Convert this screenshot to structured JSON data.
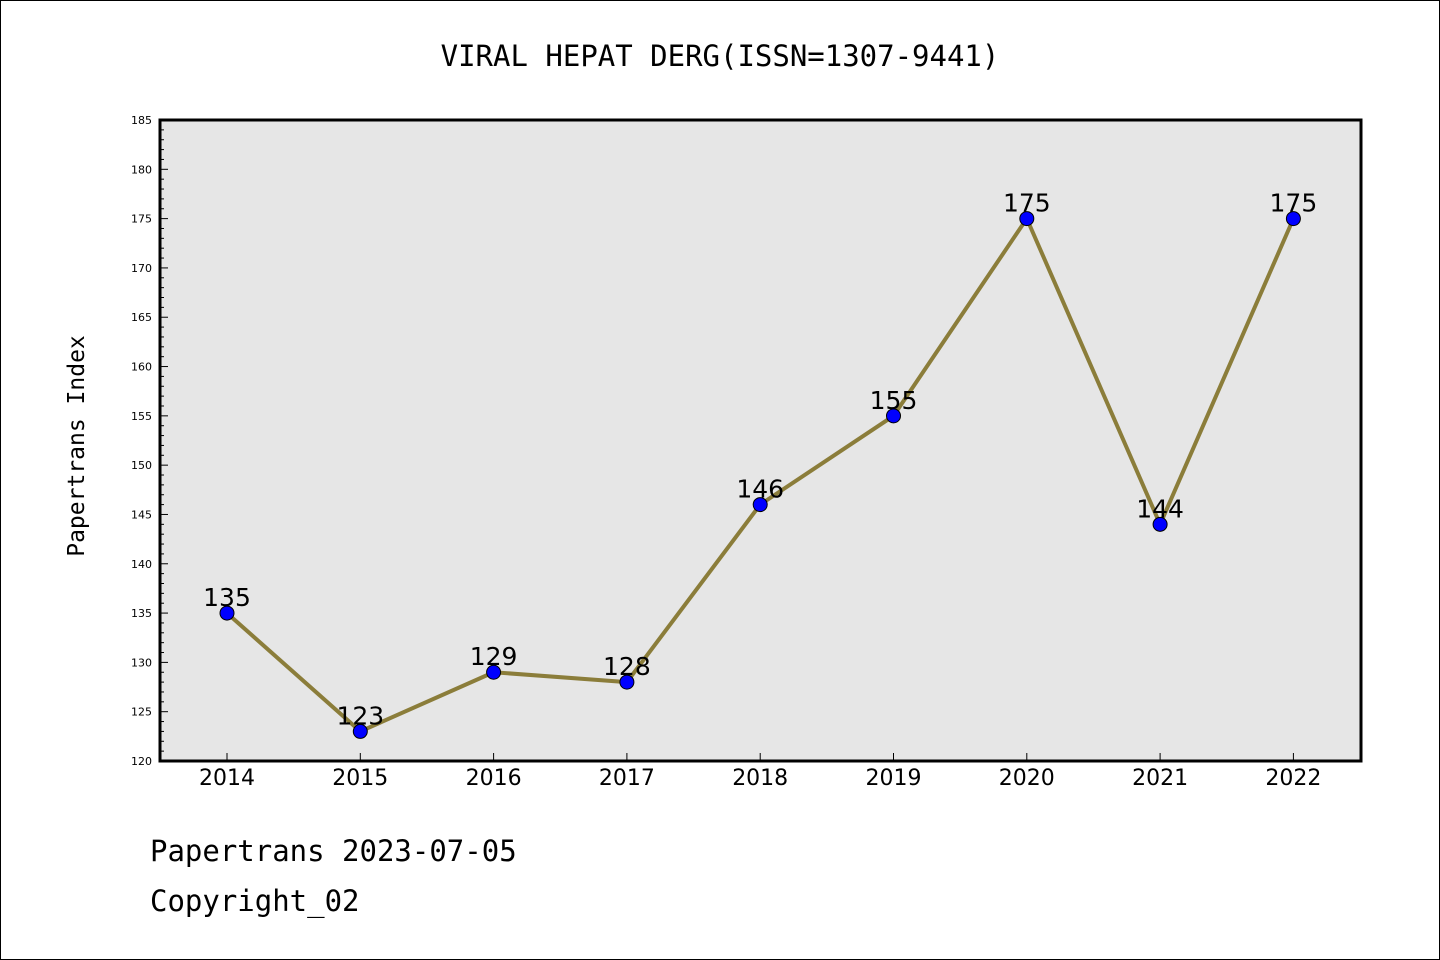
{
  "chart_data": {
    "type": "line",
    "title": "VIRAL HEPAT DERG(ISSN=1307-9441)",
    "ylabel": "Papertrans Index",
    "xlabel": "",
    "categories": [
      "2014",
      "2015",
      "2016",
      "2017",
      "2018",
      "2019",
      "2020",
      "2021",
      "2022"
    ],
    "series": [
      {
        "values": [
          135,
          123,
          129,
          128,
          146,
          155,
          175,
          144,
          175
        ]
      }
    ],
    "data_labels": [
      "135",
      "123",
      "129",
      "128",
      "146",
      "155",
      "175",
      "144",
      "175"
    ],
    "ylim": [
      120,
      185
    ],
    "yticks": [
      120,
      125,
      130,
      135,
      140,
      145,
      150,
      155,
      160,
      165,
      170,
      175,
      180,
      185
    ],
    "y_minor_step": 1,
    "grid": false,
    "colors": {
      "line": "#8b7d3a",
      "marker": "#0000ff",
      "plot_background": "#e6e6e6",
      "axes": "#000000"
    }
  },
  "footer": {
    "line1": "Papertrans 2023-07-05",
    "line2": "Copyright_02"
  }
}
